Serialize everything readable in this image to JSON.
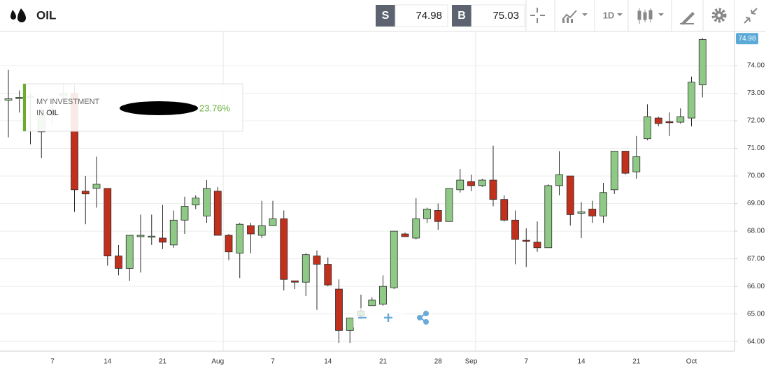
{
  "toolbar": {
    "symbol": "OIL",
    "sell_label": "S",
    "sell_price": 74.98,
    "buy_label": "B",
    "buy_price": 75.03,
    "interval": "1D"
  },
  "tooltip": {
    "line1": "MY INVESTMENT",
    "line2_prefix": "IN",
    "line2_name": "OIL",
    "value": "23.76%"
  },
  "chart_data": {
    "type": "candlestick",
    "categories": [
      null,
      null,
      null,
      null,
      "7",
      null,
      null,
      null,
      null,
      "14",
      null,
      null,
      null,
      null,
      "21",
      null,
      null,
      null,
      null,
      "Aug",
      null,
      null,
      null,
      null,
      "7",
      null,
      null,
      null,
      null,
      "14",
      null,
      null,
      null,
      null,
      "21",
      null,
      null,
      null,
      null,
      "28",
      null,
      null,
      "Sep",
      null,
      null,
      null,
      null,
      "7",
      null,
      null,
      null,
      null,
      "14",
      null,
      null,
      null,
      null,
      "21",
      null,
      null,
      null,
      null,
      "Oct",
      null
    ],
    "open": [
      72.75,
      72.8,
      72.85,
      71.6,
      72.2,
      72.9,
      73.0,
      69.45,
      69.55,
      69.55,
      67.1,
      66.65,
      67.8,
      67.78,
      67.75,
      67.5,
      68.4,
      68.95,
      68.55,
      69.45,
      67.85,
      67.2,
      68.2,
      67.85,
      68.2,
      68.45,
      66.2,
      66.15,
      67.1,
      66.8,
      65.9,
      64.4,
      64.95,
      65.3,
      65.35,
      65.95,
      67.9,
      67.75,
      68.45,
      68.75,
      68.35,
      69.5,
      69.8,
      69.65,
      69.85,
      69.15,
      68.4,
      67.67,
      67.6,
      67.4,
      69.65,
      70.0,
      68.65,
      68.8,
      68.55,
      69.5,
      70.9,
      70.15,
      71.35,
      72.1,
      71.97,
      71.95,
      72.1,
      73.3
    ],
    "high": [
      73.85,
      73.1,
      73.0,
      72.5,
      72.6,
      73.35,
      73.3,
      70.0,
      70.7,
      69.55,
      67.5,
      67.85,
      68.6,
      68.6,
      68.95,
      68.75,
      69.25,
      69.3,
      69.85,
      69.6,
      67.9,
      68.3,
      68.3,
      69.1,
      69.1,
      68.75,
      66.2,
      67.2,
      67.3,
      67.05,
      66.25,
      64.85,
      65.7,
      65.6,
      66.4,
      68.0,
      67.95,
      69.2,
      68.85,
      69.0,
      69.55,
      70.25,
      70.05,
      69.9,
      71.1,
      69.3,
      68.75,
      68.1,
      68.35,
      69.7,
      70.9,
      70.0,
      69.05,
      69.1,
      69.75,
      70.9,
      70.9,
      71.45,
      72.6,
      72.15,
      72.3,
      72.45,
      73.6,
      75.0
    ],
    "low": [
      71.4,
      72.3,
      71.15,
      70.65,
      71.9,
      72.6,
      68.7,
      68.25,
      68.85,
      66.75,
      66.4,
      66.2,
      66.5,
      67.5,
      67.35,
      67.4,
      67.9,
      68.8,
      68.3,
      67.85,
      66.95,
      66.3,
      67.2,
      67.75,
      68.2,
      65.85,
      65.9,
      65.65,
      65.15,
      66.0,
      63.95,
      63.95,
      64.8,
      65.3,
      65.3,
      65.9,
      67.8,
      67.7,
      68.3,
      68.05,
      68.35,
      69.4,
      69.45,
      69.6,
      68.9,
      68.35,
      66.8,
      66.7,
      67.25,
      67.4,
      69.3,
      68.2,
      67.75,
      68.3,
      68.3,
      69.35,
      70.05,
      69.9,
      71.3,
      71.8,
      71.45,
      71.9,
      71.8,
      72.85
    ],
    "close": [
      72.8,
      72.85,
      72.9,
      72.2,
      72.4,
      73.0,
      69.5,
      69.35,
      69.7,
      67.1,
      66.65,
      67.85,
      67.85,
      67.82,
      67.6,
      68.4,
      68.9,
      69.2,
      69.55,
      67.85,
      67.25,
      68.25,
      67.9,
      68.2,
      68.45,
      66.25,
      66.15,
      67.15,
      66.8,
      66.05,
      64.4,
      64.85,
      65.1,
      65.5,
      66.0,
      68.0,
      67.8,
      68.45,
      68.8,
      68.35,
      69.55,
      69.85,
      69.65,
      69.85,
      69.15,
      68.4,
      67.7,
      67.63,
      67.4,
      69.65,
      70.05,
      68.6,
      68.7,
      68.55,
      69.4,
      70.9,
      70.1,
      70.7,
      72.15,
      71.9,
      71.93,
      72.15,
      73.4,
      74.95
    ],
    "up_color": "#8ec985",
    "down_color": "#c1301c",
    "outline_color": "#2b2b2b",
    "ylim": [
      63.65,
      75.24
    ],
    "yticks": [
      {
        "value": 64,
        "label": "64.00"
      },
      {
        "value": 65,
        "label": "65.00"
      },
      {
        "value": 66,
        "label": "66.00"
      },
      {
        "value": 67,
        "label": "67.00"
      },
      {
        "value": 68,
        "label": "68.00"
      },
      {
        "value": 69,
        "label": "69.00"
      },
      {
        "value": 70,
        "label": "70.00"
      },
      {
        "value": 71,
        "label": "71.00"
      },
      {
        "value": 72,
        "label": "72.00"
      },
      {
        "value": 73,
        "label": "73.00"
      },
      {
        "value": 74,
        "label": "74.00"
      }
    ],
    "last_price": 74.98,
    "last_price_color": "#5aa9d6",
    "grid": true,
    "y_axis_side": "right"
  }
}
